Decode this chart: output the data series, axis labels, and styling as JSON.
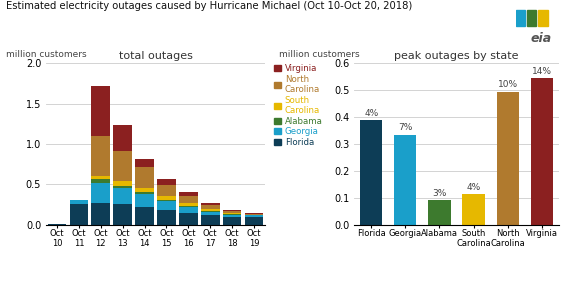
{
  "title": "Estimated electricity outages caused by Hurricane Michael (Oct 10-Oct 20, 2018)",
  "left_subtitle": "total outages",
  "right_subtitle": "peak outages by state",
  "ylabel_left": "million customers",
  "ylabel_right": "million customers",
  "stacked_dates": [
    "Oct\n10",
    "Oct\n11",
    "Oct\n12",
    "Oct\n13",
    "Oct\n14",
    "Oct\n15",
    "Oct\n16",
    "Oct\n17",
    "Oct\n18",
    "Oct\n19"
  ],
  "stacked_data": {
    "Florida": [
      0.01,
      0.26,
      0.27,
      0.25,
      0.22,
      0.18,
      0.15,
      0.12,
      0.1,
      0.1
    ],
    "Georgia": [
      0.0,
      0.04,
      0.25,
      0.2,
      0.16,
      0.11,
      0.07,
      0.04,
      0.025,
      0.015
    ],
    "Alabama": [
      0.0,
      0.0,
      0.04,
      0.035,
      0.025,
      0.015,
      0.008,
      0.004,
      0.002,
      0.001
    ],
    "South Carolina": [
      0.0,
      0.0,
      0.04,
      0.055,
      0.055,
      0.045,
      0.035,
      0.025,
      0.015,
      0.008
    ],
    "North Carolina": [
      0.0,
      0.0,
      0.5,
      0.37,
      0.25,
      0.14,
      0.09,
      0.055,
      0.03,
      0.01
    ],
    "Virginia": [
      0.0,
      0.0,
      0.62,
      0.32,
      0.1,
      0.07,
      0.05,
      0.025,
      0.015,
      0.008
    ]
  },
  "stacked_colors": {
    "Florida": "#0d3d56",
    "Georgia": "#1a9fca",
    "Alabama": "#3d7a2e",
    "South Carolina": "#e6b800",
    "North Carolina": "#b07a2e",
    "Virginia": "#8b2020"
  },
  "legend_labels": [
    "Virginia",
    "North\nCarolina",
    "South\nCarolina",
    "Alabama",
    "Georgia",
    "Florida"
  ],
  "legend_colors": [
    "#8b2020",
    "#b07a2e",
    "#e6b800",
    "#3d7a2e",
    "#1a9fca",
    "#0d3d56"
  ],
  "bar_states": [
    "Florida",
    "Georgia",
    "Alabama",
    "South Carolina",
    "North Carolina",
    "Virginia"
  ],
  "bar_values": [
    0.39,
    0.335,
    0.09,
    0.115,
    0.495,
    0.545
  ],
  "bar_colors": [
    "#0d3d56",
    "#1a9fca",
    "#3d7a2e",
    "#e6b800",
    "#b07a2e",
    "#8b2020"
  ],
  "bar_pcts": [
    "4%",
    "7%",
    "3%",
    "4%",
    "10%",
    "14%"
  ],
  "left_ylim": [
    0,
    2.0
  ],
  "right_ylim": [
    0,
    0.6
  ],
  "background_color": "#ffffff",
  "grid_color": "#cccccc"
}
